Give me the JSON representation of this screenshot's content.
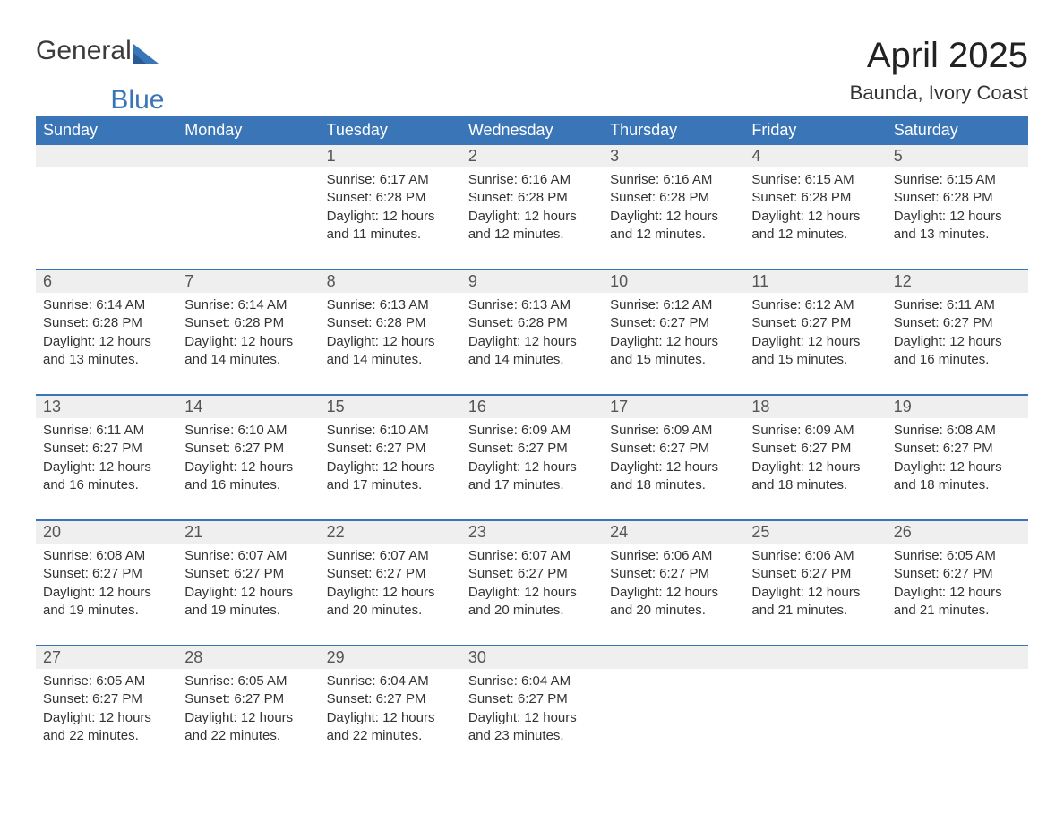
{
  "logo": {
    "text1": "General",
    "text2": "Blue"
  },
  "title": "April 2025",
  "location": "Baunda, Ivory Coast",
  "colors": {
    "header_bg": "#3a76b7",
    "header_text": "#ffffff",
    "daynum_bg": "#efefef",
    "week_border": "#3a76b7",
    "body_text": "#333333",
    "background": "#ffffff"
  },
  "day_headers": [
    "Sunday",
    "Monday",
    "Tuesday",
    "Wednesday",
    "Thursday",
    "Friday",
    "Saturday"
  ],
  "weeks": [
    {
      "days": [
        {
          "num": "",
          "sunrise": "",
          "sunset": "",
          "daylight1": "",
          "daylight2": ""
        },
        {
          "num": "",
          "sunrise": "",
          "sunset": "",
          "daylight1": "",
          "daylight2": ""
        },
        {
          "num": "1",
          "sunrise": "Sunrise: 6:17 AM",
          "sunset": "Sunset: 6:28 PM",
          "daylight1": "Daylight: 12 hours",
          "daylight2": "and 11 minutes."
        },
        {
          "num": "2",
          "sunrise": "Sunrise: 6:16 AM",
          "sunset": "Sunset: 6:28 PM",
          "daylight1": "Daylight: 12 hours",
          "daylight2": "and 12 minutes."
        },
        {
          "num": "3",
          "sunrise": "Sunrise: 6:16 AM",
          "sunset": "Sunset: 6:28 PM",
          "daylight1": "Daylight: 12 hours",
          "daylight2": "and 12 minutes."
        },
        {
          "num": "4",
          "sunrise": "Sunrise: 6:15 AM",
          "sunset": "Sunset: 6:28 PM",
          "daylight1": "Daylight: 12 hours",
          "daylight2": "and 12 minutes."
        },
        {
          "num": "5",
          "sunrise": "Sunrise: 6:15 AM",
          "sunset": "Sunset: 6:28 PM",
          "daylight1": "Daylight: 12 hours",
          "daylight2": "and 13 minutes."
        }
      ]
    },
    {
      "days": [
        {
          "num": "6",
          "sunrise": "Sunrise: 6:14 AM",
          "sunset": "Sunset: 6:28 PM",
          "daylight1": "Daylight: 12 hours",
          "daylight2": "and 13 minutes."
        },
        {
          "num": "7",
          "sunrise": "Sunrise: 6:14 AM",
          "sunset": "Sunset: 6:28 PM",
          "daylight1": "Daylight: 12 hours",
          "daylight2": "and 14 minutes."
        },
        {
          "num": "8",
          "sunrise": "Sunrise: 6:13 AM",
          "sunset": "Sunset: 6:28 PM",
          "daylight1": "Daylight: 12 hours",
          "daylight2": "and 14 minutes."
        },
        {
          "num": "9",
          "sunrise": "Sunrise: 6:13 AM",
          "sunset": "Sunset: 6:28 PM",
          "daylight1": "Daylight: 12 hours",
          "daylight2": "and 14 minutes."
        },
        {
          "num": "10",
          "sunrise": "Sunrise: 6:12 AM",
          "sunset": "Sunset: 6:27 PM",
          "daylight1": "Daylight: 12 hours",
          "daylight2": "and 15 minutes."
        },
        {
          "num": "11",
          "sunrise": "Sunrise: 6:12 AM",
          "sunset": "Sunset: 6:27 PM",
          "daylight1": "Daylight: 12 hours",
          "daylight2": "and 15 minutes."
        },
        {
          "num": "12",
          "sunrise": "Sunrise: 6:11 AM",
          "sunset": "Sunset: 6:27 PM",
          "daylight1": "Daylight: 12 hours",
          "daylight2": "and 16 minutes."
        }
      ]
    },
    {
      "days": [
        {
          "num": "13",
          "sunrise": "Sunrise: 6:11 AM",
          "sunset": "Sunset: 6:27 PM",
          "daylight1": "Daylight: 12 hours",
          "daylight2": "and 16 minutes."
        },
        {
          "num": "14",
          "sunrise": "Sunrise: 6:10 AM",
          "sunset": "Sunset: 6:27 PM",
          "daylight1": "Daylight: 12 hours",
          "daylight2": "and 16 minutes."
        },
        {
          "num": "15",
          "sunrise": "Sunrise: 6:10 AM",
          "sunset": "Sunset: 6:27 PM",
          "daylight1": "Daylight: 12 hours",
          "daylight2": "and 17 minutes."
        },
        {
          "num": "16",
          "sunrise": "Sunrise: 6:09 AM",
          "sunset": "Sunset: 6:27 PM",
          "daylight1": "Daylight: 12 hours",
          "daylight2": "and 17 minutes."
        },
        {
          "num": "17",
          "sunrise": "Sunrise: 6:09 AM",
          "sunset": "Sunset: 6:27 PM",
          "daylight1": "Daylight: 12 hours",
          "daylight2": "and 18 minutes."
        },
        {
          "num": "18",
          "sunrise": "Sunrise: 6:09 AM",
          "sunset": "Sunset: 6:27 PM",
          "daylight1": "Daylight: 12 hours",
          "daylight2": "and 18 minutes."
        },
        {
          "num": "19",
          "sunrise": "Sunrise: 6:08 AM",
          "sunset": "Sunset: 6:27 PM",
          "daylight1": "Daylight: 12 hours",
          "daylight2": "and 18 minutes."
        }
      ]
    },
    {
      "days": [
        {
          "num": "20",
          "sunrise": "Sunrise: 6:08 AM",
          "sunset": "Sunset: 6:27 PM",
          "daylight1": "Daylight: 12 hours",
          "daylight2": "and 19 minutes."
        },
        {
          "num": "21",
          "sunrise": "Sunrise: 6:07 AM",
          "sunset": "Sunset: 6:27 PM",
          "daylight1": "Daylight: 12 hours",
          "daylight2": "and 19 minutes."
        },
        {
          "num": "22",
          "sunrise": "Sunrise: 6:07 AM",
          "sunset": "Sunset: 6:27 PM",
          "daylight1": "Daylight: 12 hours",
          "daylight2": "and 20 minutes."
        },
        {
          "num": "23",
          "sunrise": "Sunrise: 6:07 AM",
          "sunset": "Sunset: 6:27 PM",
          "daylight1": "Daylight: 12 hours",
          "daylight2": "and 20 minutes."
        },
        {
          "num": "24",
          "sunrise": "Sunrise: 6:06 AM",
          "sunset": "Sunset: 6:27 PM",
          "daylight1": "Daylight: 12 hours",
          "daylight2": "and 20 minutes."
        },
        {
          "num": "25",
          "sunrise": "Sunrise: 6:06 AM",
          "sunset": "Sunset: 6:27 PM",
          "daylight1": "Daylight: 12 hours",
          "daylight2": "and 21 minutes."
        },
        {
          "num": "26",
          "sunrise": "Sunrise: 6:05 AM",
          "sunset": "Sunset: 6:27 PM",
          "daylight1": "Daylight: 12 hours",
          "daylight2": "and 21 minutes."
        }
      ]
    },
    {
      "days": [
        {
          "num": "27",
          "sunrise": "Sunrise: 6:05 AM",
          "sunset": "Sunset: 6:27 PM",
          "daylight1": "Daylight: 12 hours",
          "daylight2": "and 22 minutes."
        },
        {
          "num": "28",
          "sunrise": "Sunrise: 6:05 AM",
          "sunset": "Sunset: 6:27 PM",
          "daylight1": "Daylight: 12 hours",
          "daylight2": "and 22 minutes."
        },
        {
          "num": "29",
          "sunrise": "Sunrise: 6:04 AM",
          "sunset": "Sunset: 6:27 PM",
          "daylight1": "Daylight: 12 hours",
          "daylight2": "and 22 minutes."
        },
        {
          "num": "30",
          "sunrise": "Sunrise: 6:04 AM",
          "sunset": "Sunset: 6:27 PM",
          "daylight1": "Daylight: 12 hours",
          "daylight2": "and 23 minutes."
        },
        {
          "num": "",
          "sunrise": "",
          "sunset": "",
          "daylight1": "",
          "daylight2": ""
        },
        {
          "num": "",
          "sunrise": "",
          "sunset": "",
          "daylight1": "",
          "daylight2": ""
        },
        {
          "num": "",
          "sunrise": "",
          "sunset": "",
          "daylight1": "",
          "daylight2": ""
        }
      ]
    }
  ]
}
